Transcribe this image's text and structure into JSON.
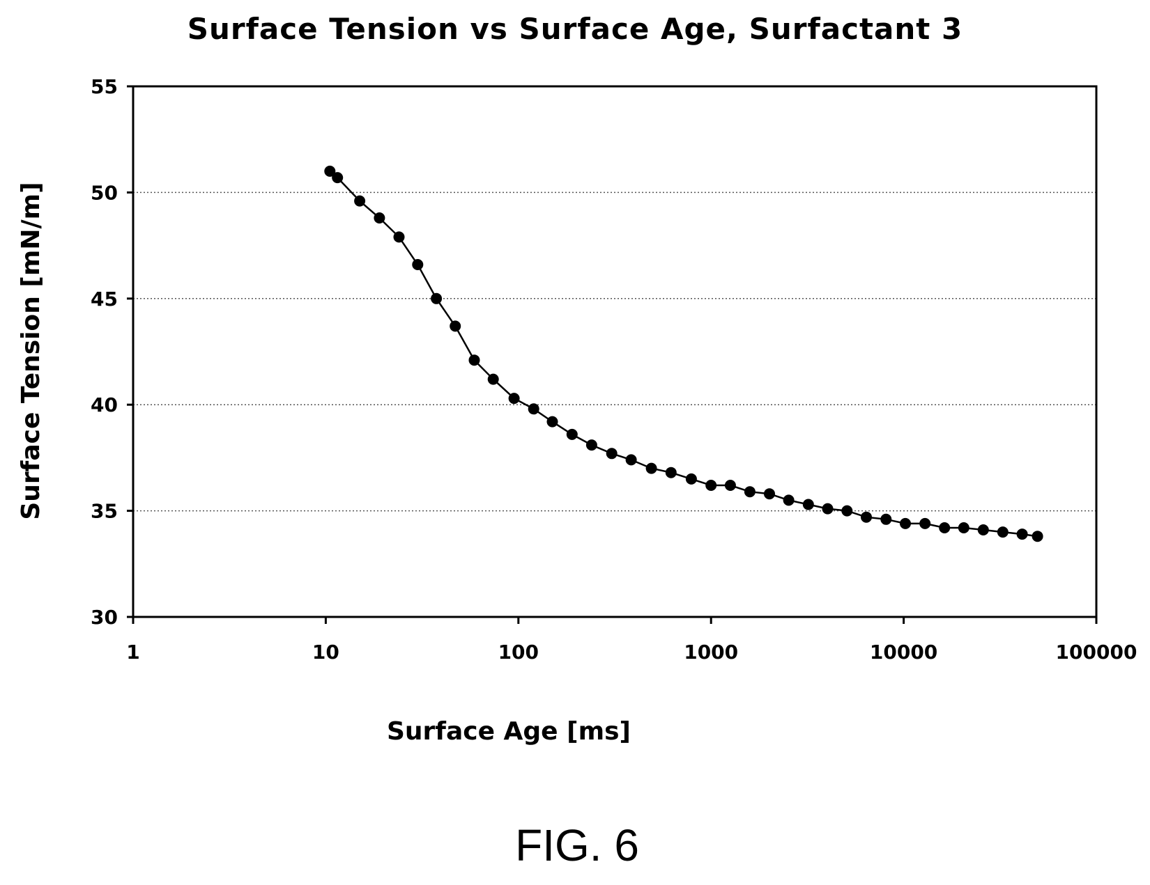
{
  "chart_data": {
    "type": "line",
    "title": "Surface Tension vs Surface Age, Surfactant 3",
    "xlabel": "Surface Age [ms]",
    "ylabel": "Surface Tension [mN/m]",
    "x_scale": "log",
    "xlim": [
      1,
      100000
    ],
    "ylim": [
      30,
      55
    ],
    "x_ticks": [
      1,
      10,
      100,
      1000,
      10000,
      100000
    ],
    "x_tick_labels": [
      "1",
      "10",
      "100",
      "1000",
      "10000",
      "100000"
    ],
    "y_ticks": [
      30,
      35,
      40,
      45,
      50,
      55
    ],
    "y_tick_labels": [
      "30",
      "35",
      "40",
      "45",
      "50",
      "55"
    ],
    "grid": "horizontal dotted",
    "legend": "none",
    "colors": {
      "line": "#000000",
      "marker": "#000000",
      "grid": "#555555",
      "frame": "#000000"
    },
    "series": [
      {
        "x": [
          10.5,
          11.5,
          15,
          19,
          24,
          30,
          37.5,
          47,
          59,
          74,
          95,
          120,
          150,
          190,
          240,
          305,
          385,
          490,
          620,
          790,
          1000,
          1260,
          1590,
          2010,
          2530,
          3200,
          4030,
          5080,
          6400,
          8100,
          10200,
          12900,
          16300,
          20500,
          25900,
          32700,
          41200,
          49500
        ],
        "y": [
          51.0,
          50.7,
          49.6,
          48.8,
          47.9,
          46.6,
          45.0,
          43.7,
          42.1,
          41.2,
          40.3,
          39.8,
          39.2,
          38.6,
          38.1,
          37.7,
          37.4,
          37.0,
          36.8,
          36.5,
          36.2,
          36.2,
          35.9,
          35.8,
          35.5,
          35.3,
          35.1,
          35.0,
          34.7,
          34.6,
          34.4,
          34.4,
          34.2,
          34.2,
          34.1,
          34.0,
          33.9,
          33.8
        ]
      }
    ]
  },
  "caption": "FIG. 6"
}
